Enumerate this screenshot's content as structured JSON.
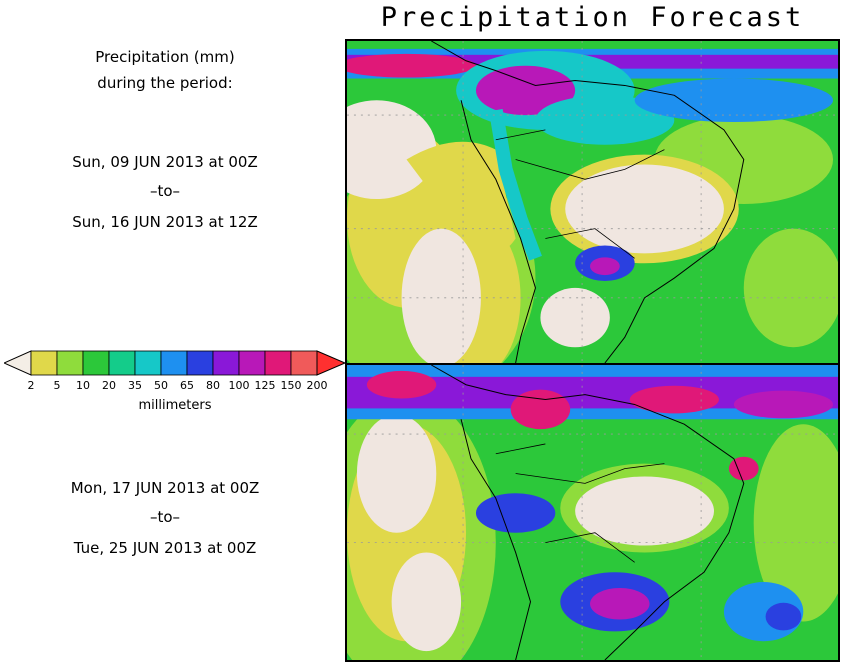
{
  "title": "Precipitation Forecast",
  "description": {
    "line1": "Precipitation (mm)",
    "line2": "during the period:"
  },
  "period1": {
    "start": "Sun, 09 JUN 2013 at 00Z",
    "sep": "–to–",
    "end": "Sun, 16 JUN 2013 at 12Z"
  },
  "period2": {
    "start": "Mon, 17 JUN 2013 at 00Z",
    "sep": "–to–",
    "end": "Tue, 25 JUN 2013 at 00Z"
  },
  "colorbar": {
    "units": "millimeters",
    "ticks": [
      "2",
      "5",
      "10",
      "20",
      "35",
      "50",
      "65",
      "80",
      "100",
      "125",
      "150",
      "200"
    ],
    "colors": [
      "#e0d84a",
      "#8fdc3c",
      "#2cc83a",
      "#14cc8a",
      "#16c8c8",
      "#1e90f0",
      "#2a40e0",
      "#8a18d8",
      "#b818b8",
      "#e01878",
      "#f05a5a"
    ],
    "under_color": "#f4eee6",
    "over_color": "#ff3030"
  },
  "map": {
    "land_dry_color": "#f0e6e0",
    "grid": true
  }
}
